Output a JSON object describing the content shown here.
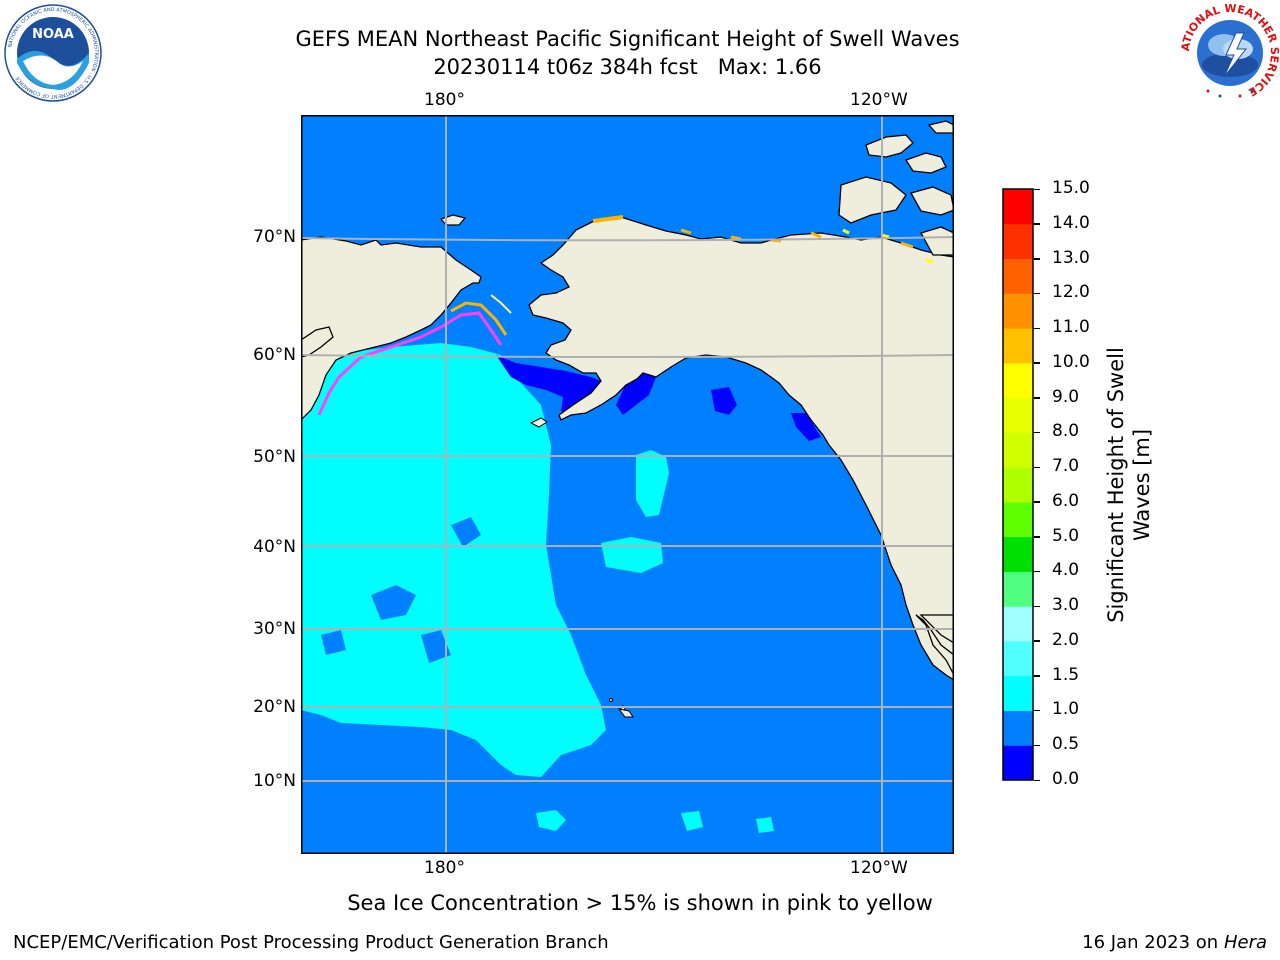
{
  "header": {
    "title_line1": "GEFS MEAN Northeast Pacific Significant Height of Swell Waves",
    "title_line2": "20230114 t06z 384h fcst   Max: 1.66"
  },
  "logos": {
    "left": {
      "icon": "noaa-logo",
      "text": "NOAA",
      "ring_text": "NATIONAL OCEANIC AND ATMOSPHERIC ADMINISTRATION · U.S. DEPARTMENT OF COMMERCE"
    },
    "right": {
      "icon": "nws-logo",
      "ring_text": "NATIONAL WEATHER SERVICE"
    }
  },
  "map": {
    "lon_labels": [
      "180°",
      "120°W"
    ],
    "lat_labels": [
      "70°N",
      "60°N",
      "50°N",
      "40°N",
      "30°N",
      "20°N",
      "10°N"
    ],
    "ocean_base_color": "#0080ff",
    "land_color": "#efeedc",
    "swell_color": "#00ffff",
    "low_color": "#0000ff",
    "ice_colors": [
      "#ff40ff",
      "#ffb000",
      "#ffff80"
    ]
  },
  "colorbar": {
    "label_line1": "Significant Height of Swell",
    "label_line2": "Waves [m]",
    "ticks": [
      "0.0",
      "0.5",
      "1.0",
      "1.5",
      "2.0",
      "3.0",
      "4.0",
      "5.0",
      "6.0",
      "7.0",
      "8.0",
      "9.0",
      "10.0",
      "11.0",
      "12.0",
      "13.0",
      "14.0",
      "15.0"
    ],
    "colors": [
      "#0000ff",
      "#0080ff",
      "#00ffff",
      "#50ffff",
      "#a0ffff",
      "#50ff80",
      "#00e000",
      "#60ff00",
      "#b0ff00",
      "#d0ff00",
      "#e8ff00",
      "#ffff00",
      "#ffc000",
      "#ff9000",
      "#ff6000",
      "#ff3000",
      "#ff0000"
    ]
  },
  "note": "Sea Ice Concentration > 15% is shown in pink to yellow",
  "footer": {
    "left": "NCEP/EMC/Verification Post Processing Product Generation Branch",
    "date": "16 Jan 2023 on ",
    "host": "Hera"
  }
}
